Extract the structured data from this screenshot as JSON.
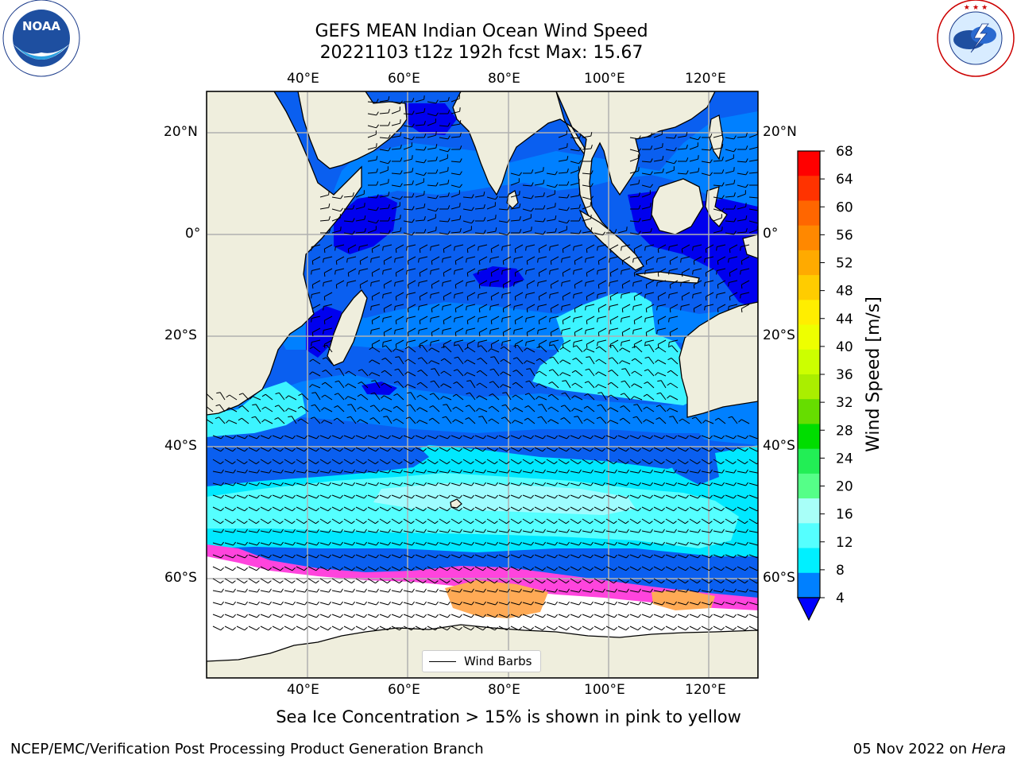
{
  "title": {
    "line1": "GEFS MEAN Indian Ocean Wind Speed",
    "line2": "20221103 t12z 192h fcst   Max: 15.67"
  },
  "logos": {
    "left": {
      "text": "NOAA",
      "ring_text": "NATIONAL OCEANIC AND ATMOSPHERIC ADMINISTRATION · U.S. DEPARTMENT OF COMMERCE"
    },
    "right": {
      "ring_text": "NATIONAL WEATHER SERVICE"
    }
  },
  "map": {
    "lon_ticks": [
      "40°E",
      "60°E",
      "80°E",
      "100°E",
      "120°E"
    ],
    "lat_ticks_left": [
      "20°N",
      "0°",
      "20°S",
      "40°S",
      "60°S"
    ],
    "lat_ticks_right": [
      "20°N",
      "0°",
      "20°S",
      "40°S",
      "60°S"
    ],
    "legend_label": "Wind Barbs",
    "colors": {
      "land": "#efeedd",
      "ice_free": "#ffffff",
      "deep_blue": "#0000ee",
      "blue_4": "#0a5ff0",
      "blue_med": "#0080ff",
      "cyan_8": "#00e8ff",
      "cyan_12": "#3cf4ff",
      "cyan_16": "#9efcff",
      "ice_pink": "#ff44dd",
      "ice_orange": "#ffaa55"
    }
  },
  "colorbar": {
    "label": "Wind Speed [m/s]",
    "ticks": [
      "68",
      "64",
      "60",
      "56",
      "52",
      "48",
      "44",
      "40",
      "36",
      "32",
      "28",
      "24",
      "20",
      "16",
      "12",
      "8",
      "4"
    ],
    "bands_top_to_bottom": [
      "#ff0000",
      "#ff3300",
      "#ff6600",
      "#ff8800",
      "#ffaa00",
      "#ffcc00",
      "#ffee00",
      "#eeff00",
      "#ccff00",
      "#aaee00",
      "#66dd00",
      "#00dd00",
      "#22ee55",
      "#55ff88",
      "#a8fff8",
      "#55ffff",
      "#00f0ff",
      "#0080ff"
    ],
    "extend_color": "#0000ff"
  },
  "caption": "Sea Ice Concentration > 15% is shown in pink to yellow",
  "footer": {
    "left": "NCEP/EMC/Verification Post Processing Product Generation Branch",
    "date": "05 Nov 2022 on",
    "host": "Hera"
  }
}
